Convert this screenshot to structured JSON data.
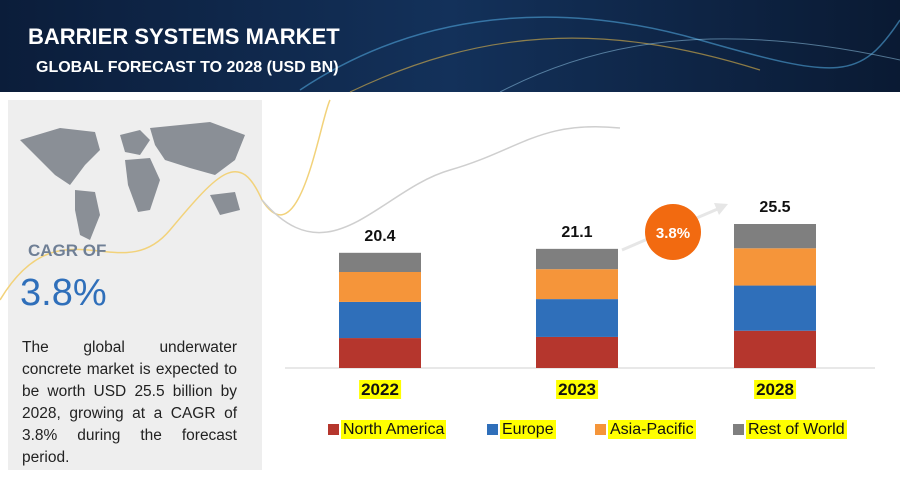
{
  "header": {
    "title": "BARRIER SYSTEMS MARKET",
    "subtitle": "GLOBAL FORECAST TO 2028 (USD BN)"
  },
  "sidebar": {
    "cagr_label": "CAGR OF",
    "cagr_value": "3.8%",
    "description": "The global underwater concrete market is expected to be worth USD 25.5 billion by 2028, growing at a CAGR of 3.8% during the forecast period."
  },
  "chart_data": {
    "type": "stacked-bar",
    "categories": [
      "2022",
      "2023",
      "2028"
    ],
    "totals": [
      20.4,
      21.1,
      25.5
    ],
    "annotation": "3.8%",
    "series": [
      {
        "name": "North America",
        "color": "#b5362d",
        "values": [
          5.3,
          5.5,
          6.6
        ]
      },
      {
        "name": "Europe",
        "color": "#2f6fba",
        "values": [
          6.4,
          6.7,
          8.0
        ]
      },
      {
        "name": "Asia-Pacific",
        "color": "#f5953a",
        "values": [
          5.3,
          5.3,
          6.6
        ]
      },
      {
        "name": "Rest of World",
        "color": "#7f7f7f",
        "values": [
          3.4,
          3.6,
          4.3
        ]
      }
    ]
  }
}
